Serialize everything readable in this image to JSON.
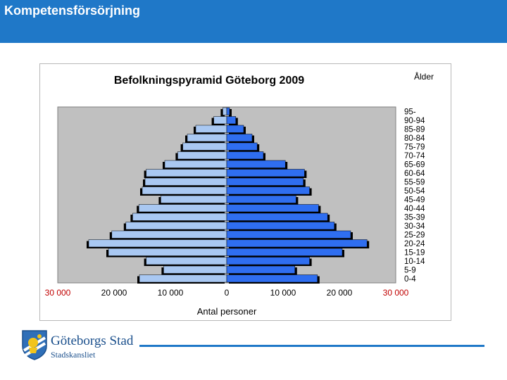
{
  "header": {
    "title": "Kompetensförsörjning",
    "color": "#1f78c8"
  },
  "footer": {
    "logo_name": "Göteborgs Stad",
    "logo_sub": "Stadskansliet",
    "line_color": "#1f78c8"
  },
  "chart_data": {
    "type": "bar",
    "orientation": "horizontal",
    "layout": "population-pyramid",
    "title": "Befolkningspyramid Göteborg 2009",
    "xlabel": "Antal personer",
    "ylabel": "Ålder",
    "xlim": [
      -30000,
      30000
    ],
    "x_ticks": [
      -30000,
      -20000,
      -10000,
      0,
      10000,
      20000,
      30000
    ],
    "x_tick_labels": [
      "30 000",
      "20 000",
      "10 000",
      "0",
      "10 000",
      "20 000",
      "30 000"
    ],
    "categories": [
      "95-",
      "90-94",
      "85-89",
      "80-84",
      "75-79",
      "70-74",
      "65-69",
      "60-64",
      "55-59",
      "50-54",
      "45-49",
      "40-44",
      "35-39",
      "30-34",
      "25-29",
      "20-24",
      "15-19",
      "10-14",
      "5-9",
      "0-4"
    ],
    "series": [
      {
        "side": "left",
        "color": "#a9c8f2",
        "values": [
          700,
          2300,
          5500,
          7000,
          7800,
          8700,
          11000,
          14300,
          14500,
          15000,
          11700,
          15600,
          16700,
          17900,
          20400,
          24500,
          21000,
          14300,
          11200,
          15500
        ]
      },
      {
        "side": "right",
        "color": "#2f6ef0",
        "values": [
          500,
          1600,
          3000,
          4500,
          5400,
          6500,
          10400,
          13800,
          13600,
          14700,
          12300,
          16300,
          17900,
          19100,
          22000,
          24900,
          20500,
          14700,
          12100,
          16100
        ]
      }
    ],
    "colors": {
      "plot_background": "#c0c0c0",
      "left_bars": "#a9c8f2",
      "right_bars": "#2f6ef0",
      "shadow": "#000000",
      "x_tick_labels_outer": "#c00000",
      "x_tick_labels_inner": "#000000"
    },
    "grid": false,
    "legend": "none"
  }
}
